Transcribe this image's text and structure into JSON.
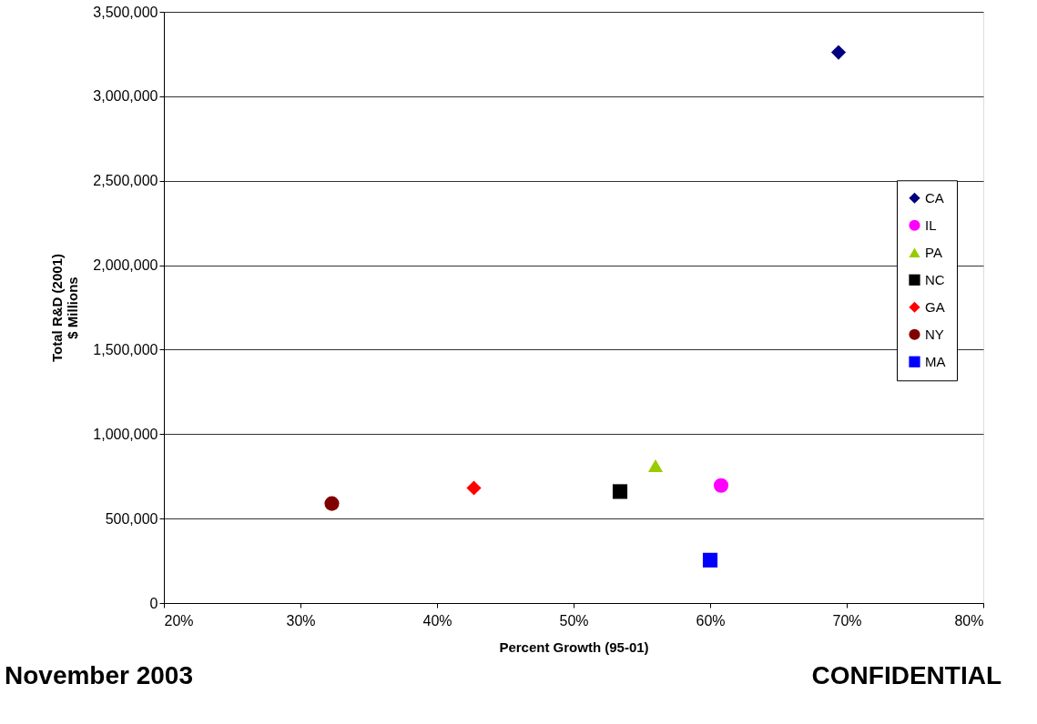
{
  "chart_data": {
    "type": "scatter",
    "xlabel": "Percent Growth (95-01)",
    "ylabel": "Total R&D (2001)\n$ Millions",
    "series": [
      {
        "name": "CA",
        "color": "#000080",
        "marker": "diamond",
        "x": [
          69.4
        ],
        "values": [
          3260000
        ]
      },
      {
        "name": "IL",
        "color": "#ff00ff",
        "marker": "circle",
        "x": [
          60.8
        ],
        "values": [
          696000
        ]
      },
      {
        "name": "PA",
        "color": "#99cc00",
        "marker": "triangle",
        "x": [
          56.0
        ],
        "values": [
          813000
        ]
      },
      {
        "name": "NC",
        "color": "#000000",
        "marker": "square",
        "x": [
          53.4
        ],
        "values": [
          660000
        ]
      },
      {
        "name": "GA",
        "color": "#ff0000",
        "marker": "diamond",
        "x": [
          42.7
        ],
        "values": [
          681000
        ]
      },
      {
        "name": "NY",
        "color": "#800000",
        "marker": "circle",
        "x": [
          32.3
        ],
        "values": [
          589000
        ]
      },
      {
        "name": "MA",
        "color": "#0000ff",
        "marker": "square",
        "x": [
          60.0
        ],
        "values": [
          254000
        ]
      }
    ],
    "xlim": [
      20,
      80
    ],
    "xticks": [
      {
        "value": 20,
        "label": "20%"
      },
      {
        "value": 30,
        "label": "30%"
      },
      {
        "value": 40,
        "label": "40%"
      },
      {
        "value": 50,
        "label": "50%"
      },
      {
        "value": 60,
        "label": "60%"
      },
      {
        "value": 70,
        "label": "70%"
      },
      {
        "value": 80,
        "label": "80%"
      }
    ],
    "ylim": [
      0,
      3500000
    ],
    "yticks": [
      0,
      {
        "value": 500000,
        "label": "500,000"
      },
      {
        "value": 1000000,
        "label": "1,000,000"
      },
      {
        "value": 1500000,
        "label": "1,500,000"
      },
      {
        "value": 2000000,
        "label": "2,000,000"
      },
      {
        "value": 2500000,
        "label": "2,500,000"
      },
      {
        "value": 3000000,
        "label": "3,000,000"
      },
      {
        "value": 3500000,
        "label": "3,500,000"
      }
    ],
    "grid": "y",
    "legend": "right",
    "annotations": [
      "November 2003",
      "CONFIDENTIAL"
    ]
  }
}
